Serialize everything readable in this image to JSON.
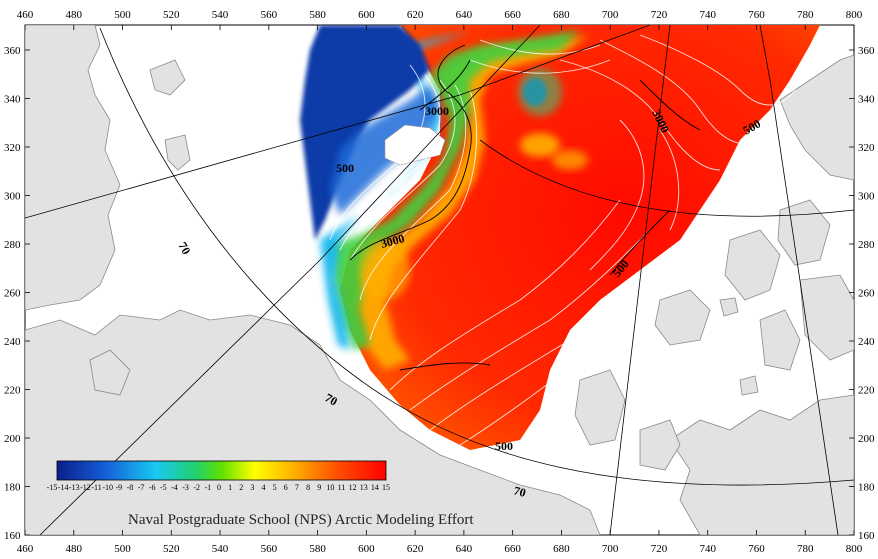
{
  "axes": {
    "x_ticks": [
      "460",
      "480",
      "500",
      "520",
      "540",
      "560",
      "580",
      "600",
      "620",
      "640",
      "660",
      "680",
      "700",
      "720",
      "740",
      "760",
      "780",
      "800"
    ],
    "y_ticks": [
      "360",
      "340",
      "320",
      "300",
      "280",
      "260",
      "240",
      "220",
      "200",
      "180",
      "160"
    ]
  },
  "contour_labels": [
    "3000",
    "3000",
    "3000",
    "500",
    "500",
    "500",
    "500",
    "70",
    "70",
    "70"
  ],
  "colorbar": {
    "labels": [
      "-15",
      "-14",
      "-13",
      "-12",
      "-11",
      "-10",
      "-9",
      "-8",
      "-7",
      "-6",
      "-5",
      "-4",
      "-3",
      "-2",
      "-1",
      "0",
      "1",
      "2",
      "3",
      "4",
      "5",
      "6",
      "7",
      "8",
      "9",
      "10",
      "11",
      "12",
      "13",
      "14",
      "15"
    ]
  },
  "credit": "Naval Postgraduate School (NPS) Arctic Modeling Effort",
  "colors": {
    "land": "#e2e2e2",
    "land_outline": "#8a8a8a",
    "ocean": "#ffffff",
    "field_warm": "#ff1a00",
    "field_cold": "#0a2f9a"
  }
}
